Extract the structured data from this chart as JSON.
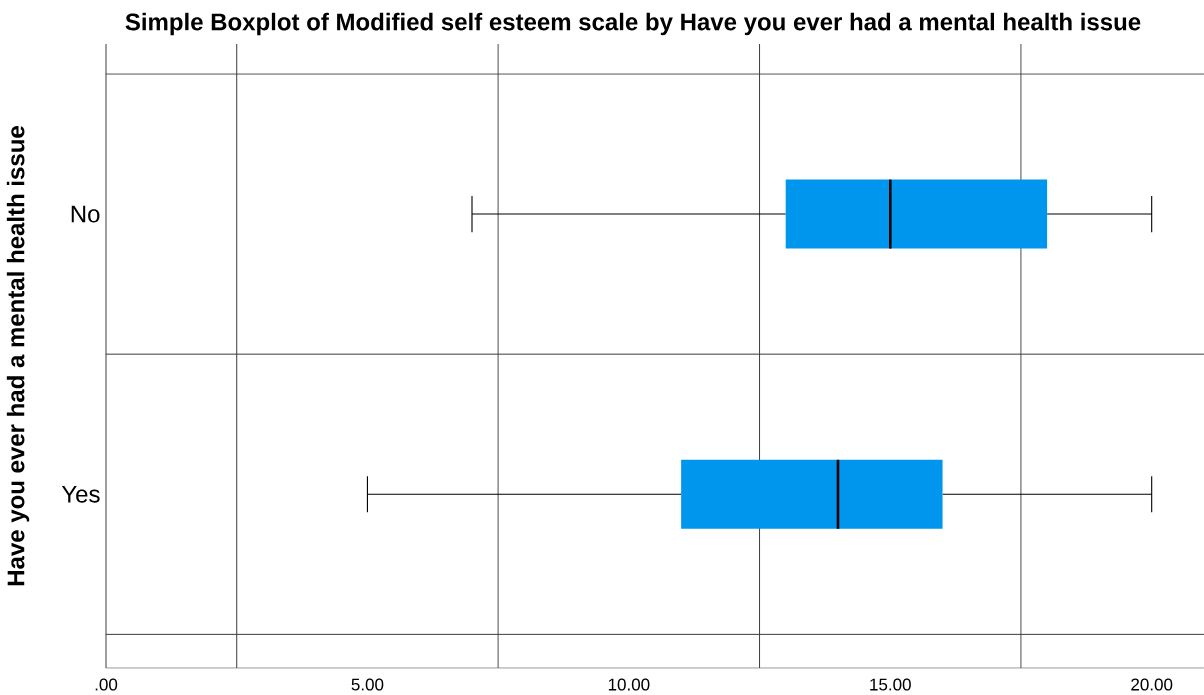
{
  "chart_data": {
    "type": "box",
    "orientation": "horizontal",
    "title": "Simple Boxplot of Modified self esteem scale  by Have you ever had a mental health issue",
    "ylabel": "Have you ever had a mental health issue",
    "categories": [
      "No",
      "Yes"
    ],
    "series": [
      {
        "color": "#0096ed",
        "boxes": [
          {
            "low": 7,
            "q1": 13,
            "median": 15,
            "q3": 18,
            "high": 20
          },
          {
            "low": 5,
            "q1": 11,
            "median": 14,
            "q3": 16,
            "high": 20
          }
        ]
      }
    ],
    "xlim": [
      0,
      21
    ],
    "xticks": [
      {
        "value": 0,
        "label": ".00"
      },
      {
        "value": 5,
        "label": "5.00"
      },
      {
        "value": 10,
        "label": "10.00"
      },
      {
        "value": 15,
        "label": "15.00"
      },
      {
        "value": 20,
        "label": "20.00"
      }
    ],
    "ref_lines": [
      {
        "axis": "x",
        "value": 2.5
      },
      {
        "axis": "x",
        "value": 7.5
      },
      {
        "axis": "x",
        "value": 12.5
      },
      {
        "axis": "x",
        "value": 17.5
      }
    ],
    "grid": "y"
  }
}
